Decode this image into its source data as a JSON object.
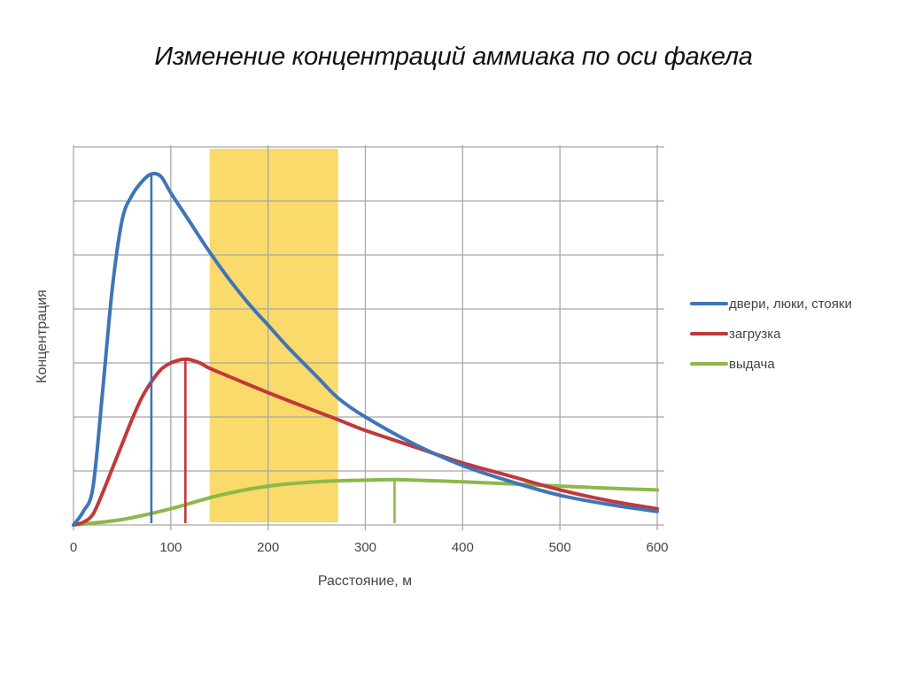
{
  "title": "Изменение концентраций аммиака по оси факела",
  "chart_data": {
    "type": "line",
    "title": "Изменение концентраций аммиака по оси факела",
    "xlabel": "Расстояние, м",
    "ylabel": "Концентрация",
    "xlim": [
      0,
      600
    ],
    "ylim": [
      0,
      7
    ],
    "x_ticks": [
      "0",
      "100",
      "200",
      "300",
      "400",
      "500",
      "600"
    ],
    "y_ticks_labeled": false,
    "grid": true,
    "legend_position": "right",
    "highlight_band": {
      "x_start": 140,
      "x_end": 272,
      "color": "#F9D75E"
    },
    "series": [
      {
        "name": "двери, люки, стояки",
        "color": "#3E75B8",
        "x": [
          0,
          10,
          20,
          30,
          40,
          50,
          60,
          70,
          80,
          90,
          100,
          120,
          140,
          160,
          180,
          200,
          220,
          250,
          272,
          300,
          350,
          400,
          450,
          500,
          550,
          600
        ],
        "values": [
          0.0,
          0.25,
          0.7,
          2.5,
          4.4,
          5.65,
          6.1,
          6.35,
          6.5,
          6.45,
          6.15,
          5.6,
          5.05,
          4.55,
          4.1,
          3.7,
          3.3,
          2.75,
          2.35,
          2.0,
          1.5,
          1.1,
          0.8,
          0.55,
          0.38,
          0.25
        ],
        "marker_x": 80
      },
      {
        "name": "загрузка",
        "color": "#C0393B",
        "x": [
          0,
          10,
          20,
          30,
          40,
          50,
          60,
          70,
          80,
          90,
          100,
          110,
          115,
          120,
          130,
          140,
          160,
          200,
          250,
          272,
          300,
          350,
          400,
          450,
          500,
          550,
          600
        ],
        "values": [
          0.0,
          0.05,
          0.2,
          0.6,
          1.05,
          1.5,
          1.95,
          2.35,
          2.65,
          2.88,
          3.0,
          3.06,
          3.07,
          3.06,
          3.0,
          2.9,
          2.75,
          2.45,
          2.1,
          1.95,
          1.75,
          1.45,
          1.15,
          0.9,
          0.65,
          0.45,
          0.3
        ],
        "marker_x": 115
      },
      {
        "name": "выдача",
        "color": "#8DB84A",
        "x": [
          0,
          50,
          100,
          150,
          200,
          250,
          300,
          330,
          350,
          400,
          450,
          500,
          550,
          600
        ],
        "values": [
          0.0,
          0.1,
          0.3,
          0.55,
          0.72,
          0.8,
          0.83,
          0.84,
          0.83,
          0.8,
          0.76,
          0.72,
          0.68,
          0.65
        ],
        "marker_x": 330
      }
    ]
  },
  "legend": {
    "items": [
      {
        "label": "двери, люки, стояки",
        "color": "#3E75B8"
      },
      {
        "label": "загрузка",
        "color": "#C0393B"
      },
      {
        "label": "выдача",
        "color": "#8DB84A"
      }
    ]
  }
}
